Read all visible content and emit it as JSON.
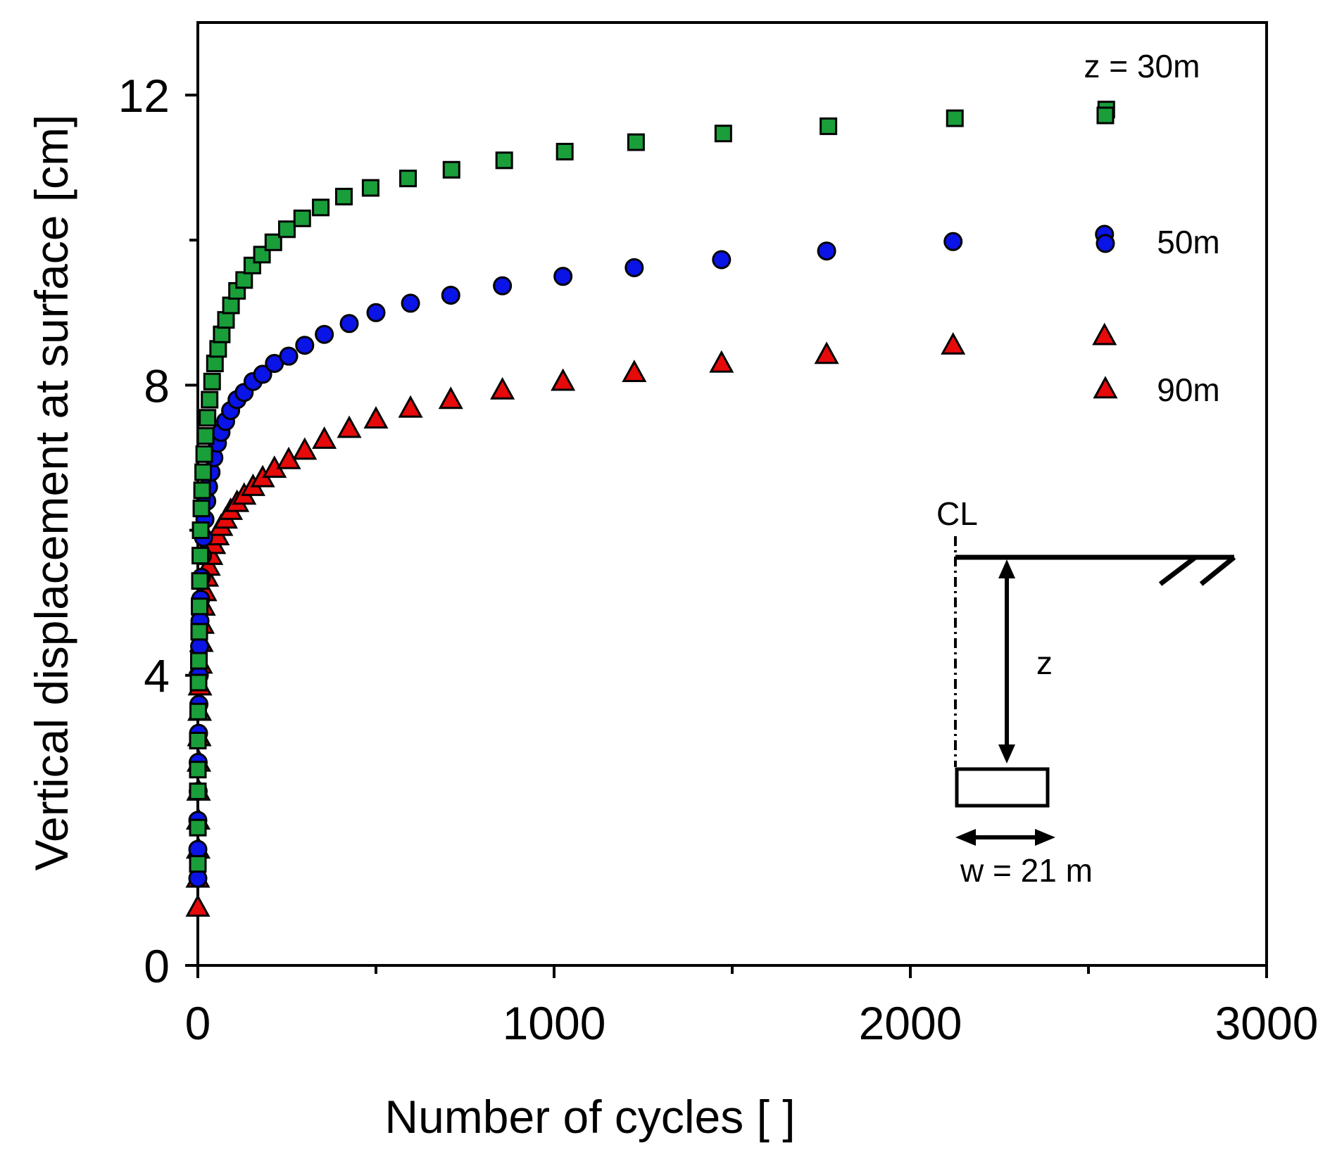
{
  "chart_data": {
    "type": "scatter",
    "xlabel": "Number of cycles [ ]",
    "ylabel": "Vertical displacement at surface [cm]",
    "xlim": [
      0,
      3000
    ],
    "ylim": [
      0,
      13
    ],
    "x_ticks": [
      0,
      1000,
      2000,
      3000
    ],
    "y_ticks": [
      0,
      4,
      8,
      12
    ],
    "x_tick_labels": [
      "0",
      "1000",
      "2000",
      "3000"
    ],
    "y_tick_labels": [
      "0",
      "4",
      "8",
      "12"
    ],
    "x_minor_ticks": [
      500,
      1500,
      2500
    ],
    "y_minor_ticks": [
      2,
      6,
      10
    ],
    "grid": false,
    "legend_position": "top-right",
    "series": [
      {
        "name": "z = 30m",
        "marker": "square",
        "color": "#1a9e3a",
        "points": [
          [
            0,
            1.4
          ],
          [
            0,
            1.9
          ],
          [
            0,
            2.4
          ],
          [
            0,
            2.7
          ],
          [
            0,
            3.1
          ],
          [
            1,
            3.5
          ],
          [
            2,
            3.9
          ],
          [
            3,
            4.2
          ],
          [
            4,
            4.6
          ],
          [
            5,
            4.95
          ],
          [
            6,
            5.3
          ],
          [
            7,
            5.65
          ],
          [
            8,
            6.0
          ],
          [
            10,
            6.3
          ],
          [
            12,
            6.55
          ],
          [
            15,
            6.8
          ],
          [
            18,
            7.05
          ],
          [
            22,
            7.3
          ],
          [
            27,
            7.55
          ],
          [
            33,
            7.8
          ],
          [
            40,
            8.05
          ],
          [
            48,
            8.3
          ],
          [
            57,
            8.5
          ],
          [
            67,
            8.7
          ],
          [
            79,
            8.9
          ],
          [
            93,
            9.1
          ],
          [
            110,
            9.3
          ],
          [
            130,
            9.45
          ],
          [
            153,
            9.65
          ],
          [
            180,
            9.8
          ],
          [
            212,
            9.97
          ],
          [
            250,
            10.15
          ],
          [
            293,
            10.3
          ],
          [
            345,
            10.45
          ],
          [
            410,
            10.6
          ],
          [
            485,
            10.72
          ],
          [
            590,
            10.85
          ],
          [
            712,
            10.97
          ],
          [
            860,
            11.1
          ],
          [
            1030,
            11.22
          ],
          [
            1230,
            11.35
          ],
          [
            1475,
            11.47
          ],
          [
            1770,
            11.57
          ],
          [
            2125,
            11.68
          ],
          [
            2550,
            11.8
          ]
        ]
      },
      {
        "name": "50m",
        "marker": "circle",
        "color": "#0a14e6",
        "points": [
          [
            0,
            1.2
          ],
          [
            0,
            1.6
          ],
          [
            0,
            2.0
          ],
          [
            1,
            2.4
          ],
          [
            1,
            2.8
          ],
          [
            2,
            3.2
          ],
          [
            3,
            3.6
          ],
          [
            4,
            4.0
          ],
          [
            5,
            4.4
          ],
          [
            6,
            4.75
          ],
          [
            8,
            5.05
          ],
          [
            10,
            5.35
          ],
          [
            13,
            5.65
          ],
          [
            16,
            5.9
          ],
          [
            20,
            6.15
          ],
          [
            25,
            6.4
          ],
          [
            30,
            6.6
          ],
          [
            37,
            6.8
          ],
          [
            45,
            7.0
          ],
          [
            55,
            7.2
          ],
          [
            65,
            7.35
          ],
          [
            78,
            7.5
          ],
          [
            92,
            7.65
          ],
          [
            110,
            7.8
          ],
          [
            130,
            7.9
          ],
          [
            155,
            8.05
          ],
          [
            182,
            8.15
          ],
          [
            215,
            8.3
          ],
          [
            255,
            8.4
          ],
          [
            300,
            8.55
          ],
          [
            355,
            8.7
          ],
          [
            425,
            8.85
          ],
          [
            500,
            9.0
          ],
          [
            597,
            9.13
          ],
          [
            710,
            9.24
          ],
          [
            855,
            9.37
          ],
          [
            1025,
            9.5
          ],
          [
            1225,
            9.62
          ],
          [
            1470,
            9.73
          ],
          [
            1765,
            9.85
          ],
          [
            2120,
            9.98
          ],
          [
            2545,
            10.08
          ]
        ]
      },
      {
        "name": "90m",
        "marker": "triangle",
        "color": "#e60a0a",
        "points": [
          [
            0,
            0.8
          ],
          [
            0,
            1.2
          ],
          [
            1,
            1.6
          ],
          [
            1,
            2.0
          ],
          [
            2,
            2.4
          ],
          [
            3,
            2.8
          ],
          [
            4,
            3.15
          ],
          [
            5,
            3.5
          ],
          [
            6,
            3.85
          ],
          [
            8,
            4.15
          ],
          [
            10,
            4.45
          ],
          [
            13,
            4.7
          ],
          [
            16,
            4.95
          ],
          [
            20,
            5.15
          ],
          [
            25,
            5.35
          ],
          [
            30,
            5.5
          ],
          [
            37,
            5.65
          ],
          [
            45,
            5.8
          ],
          [
            55,
            5.92
          ],
          [
            65,
            6.05
          ],
          [
            78,
            6.15
          ],
          [
            92,
            6.27
          ],
          [
            110,
            6.38
          ],
          [
            130,
            6.48
          ],
          [
            155,
            6.6
          ],
          [
            182,
            6.72
          ],
          [
            215,
            6.85
          ],
          [
            255,
            6.97
          ],
          [
            300,
            7.1
          ],
          [
            355,
            7.25
          ],
          [
            425,
            7.4
          ],
          [
            500,
            7.53
          ],
          [
            597,
            7.68
          ],
          [
            710,
            7.8
          ],
          [
            855,
            7.93
          ],
          [
            1025,
            8.05
          ],
          [
            1225,
            8.17
          ],
          [
            1470,
            8.3
          ],
          [
            1765,
            8.42
          ],
          [
            2120,
            8.55
          ],
          [
            2545,
            8.68
          ]
        ]
      }
    ],
    "legend": [
      {
        "label": "z = 30m",
        "marker": "square"
      },
      {
        "label": "50m",
        "marker": "circle"
      },
      {
        "label": "90m",
        "marker": "triangle"
      }
    ],
    "inset": {
      "centerline_label": "CL",
      "depth_label": "z",
      "width_label": "w = 21 m"
    }
  }
}
